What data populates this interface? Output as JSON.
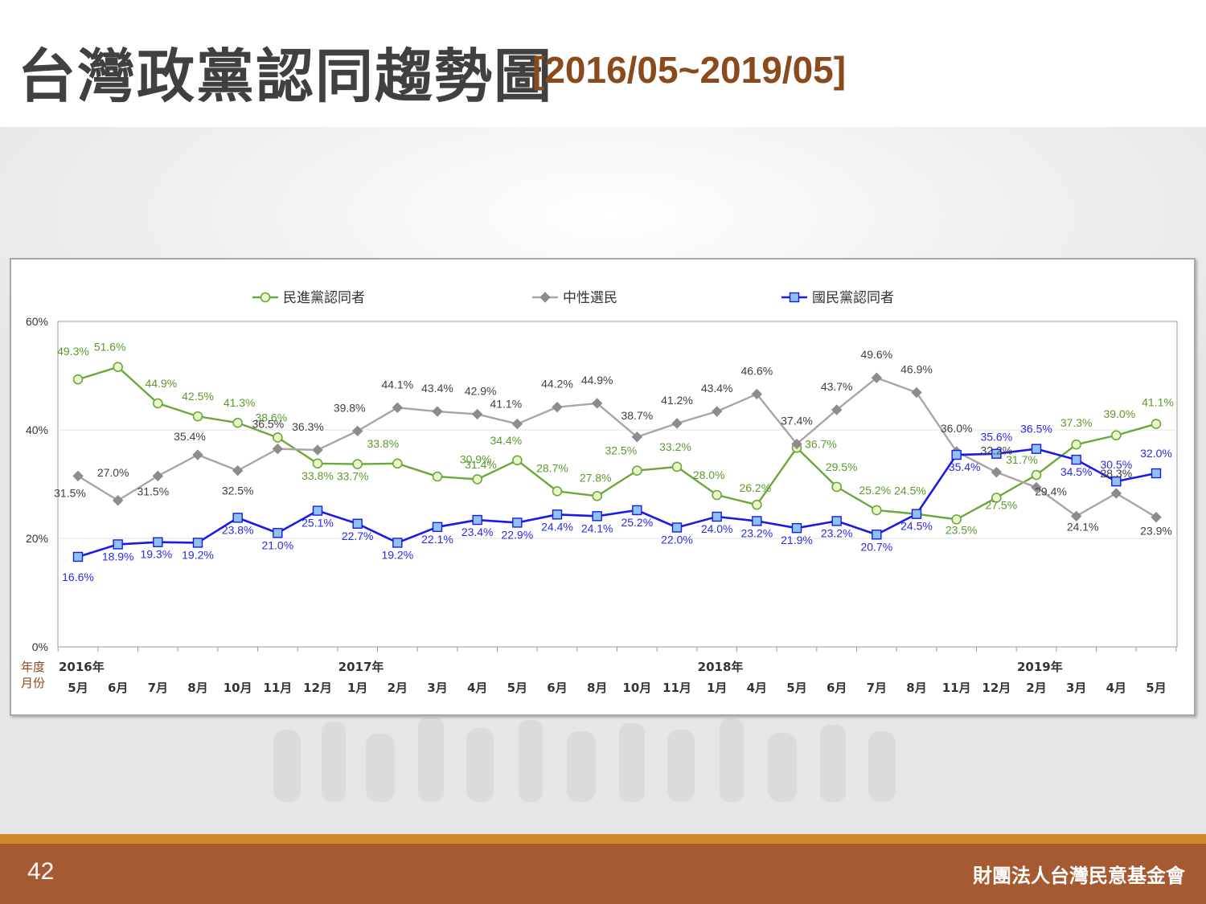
{
  "slide": {
    "title": "台灣政黨認同趨勢圖",
    "subtitle": "[2016/05~2019/05]",
    "page_number": "42",
    "organization": "財團法人台灣民意基金會"
  },
  "chart_data": {
    "type": "line",
    "title": "",
    "xlabel": "",
    "ylabel": "",
    "ylim": [
      0,
      60
    ],
    "yticks": [
      "0%",
      "20%",
      "40%",
      "60%"
    ],
    "grid": true,
    "legend_position": "top",
    "row_labels": {
      "year": "年度",
      "month": "月份"
    },
    "year_labels": [
      {
        "label": "2016年",
        "at_index": 0
      },
      {
        "label": "2017年",
        "at_index": 7
      },
      {
        "label": "2018年",
        "at_index": 16
      },
      {
        "label": "2019年",
        "at_index": 24
      }
    ],
    "categories": [
      "5月",
      "6月",
      "7月",
      "8月",
      "10月",
      "11月",
      "12月",
      "1月",
      "2月",
      "3月",
      "4月",
      "5月",
      "6月",
      "8月",
      "10月",
      "11月",
      "1月",
      "4月",
      "5月",
      "6月",
      "7月",
      "8月",
      "11月",
      "12月",
      "2月",
      "3月",
      "4月",
      "5月"
    ],
    "series": [
      {
        "name": "民進黨認同者",
        "color": "#6aa83a",
        "marker": "circle",
        "values": [
          49.3,
          51.6,
          44.9,
          42.5,
          41.3,
          38.6,
          33.8,
          33.7,
          33.8,
          31.4,
          30.9,
          34.4,
          28.7,
          27.8,
          32.5,
          33.2,
          28.0,
          26.2,
          36.7,
          29.5,
          25.2,
          24.5,
          23.5,
          27.5,
          31.7,
          37.3,
          39.0,
          41.1
        ],
        "labels": [
          "49.3%",
          "51.6%",
          "44.9%",
          "42.5%",
          "41.3%",
          "38.6%",
          "33.8%",
          "33.7%",
          "33.8%",
          "31.4%",
          "30.9%",
          "34.4%",
          "28.7%",
          "27.8%",
          "32.5%",
          "33.2%",
          "28.0%",
          "26.2%",
          "36.7%",
          "29.5%",
          "25.2%",
          "24.5%",
          "23.5%",
          "27.5%",
          "31.7%",
          "37.3%",
          "39.0%",
          "41.1%"
        ]
      },
      {
        "name": "中性選民",
        "color": "#a6a6a6",
        "marker": "diamond",
        "values": [
          31.5,
          27.0,
          31.5,
          35.4,
          32.5,
          36.5,
          36.3,
          39.8,
          44.1,
          43.4,
          42.9,
          41.1,
          44.2,
          44.9,
          38.7,
          41.2,
          43.4,
          46.6,
          37.4,
          43.7,
          49.6,
          46.9,
          36.0,
          32.2,
          29.4,
          24.1,
          28.3,
          23.9
        ],
        "labels": [
          "31.5%",
          "27.0%",
          "31.5%",
          "35.4%",
          "32.5%",
          "36.5%",
          "36.3%",
          "39.8%",
          "44.1%",
          "43.4%",
          "42.9%",
          "41.1%",
          "44.2%",
          "44.9%",
          "38.7%",
          "41.2%",
          "43.4%",
          "46.6%",
          "37.4%",
          "43.7%",
          "49.6%",
          "46.9%",
          "36.0%",
          "32.2%",
          "29.4%",
          "24.1%",
          "28.3%",
          "23.9%"
        ]
      },
      {
        "name": "國民黨認同者",
        "color": "#1a1ae6",
        "marker": "square",
        "values": [
          16.6,
          18.9,
          19.3,
          19.2,
          23.8,
          21.0,
          25.1,
          22.7,
          19.2,
          22.1,
          23.4,
          22.9,
          24.4,
          24.1,
          25.2,
          22.0,
          24.0,
          23.2,
          21.9,
          23.2,
          20.7,
          24.5,
          35.4,
          35.6,
          36.5,
          34.5,
          30.5,
          32.0
        ],
        "labels": [
          "16.6%",
          "18.9%",
          "19.3%",
          "19.2%",
          "23.8%",
          "21.0%",
          "25.1%",
          "22.7%",
          "19.2%",
          "22.1%",
          "23.4%",
          "22.9%",
          "24.4%",
          "24.1%",
          "25.2%",
          "22.0%",
          "24.0%",
          "23.2%",
          "21.9%",
          "23.2%",
          "20.7%",
          "24.5%",
          "35.4%",
          "35.6%",
          "36.5%",
          "34.5%",
          "30.5%",
          "32.0%"
        ]
      }
    ]
  }
}
